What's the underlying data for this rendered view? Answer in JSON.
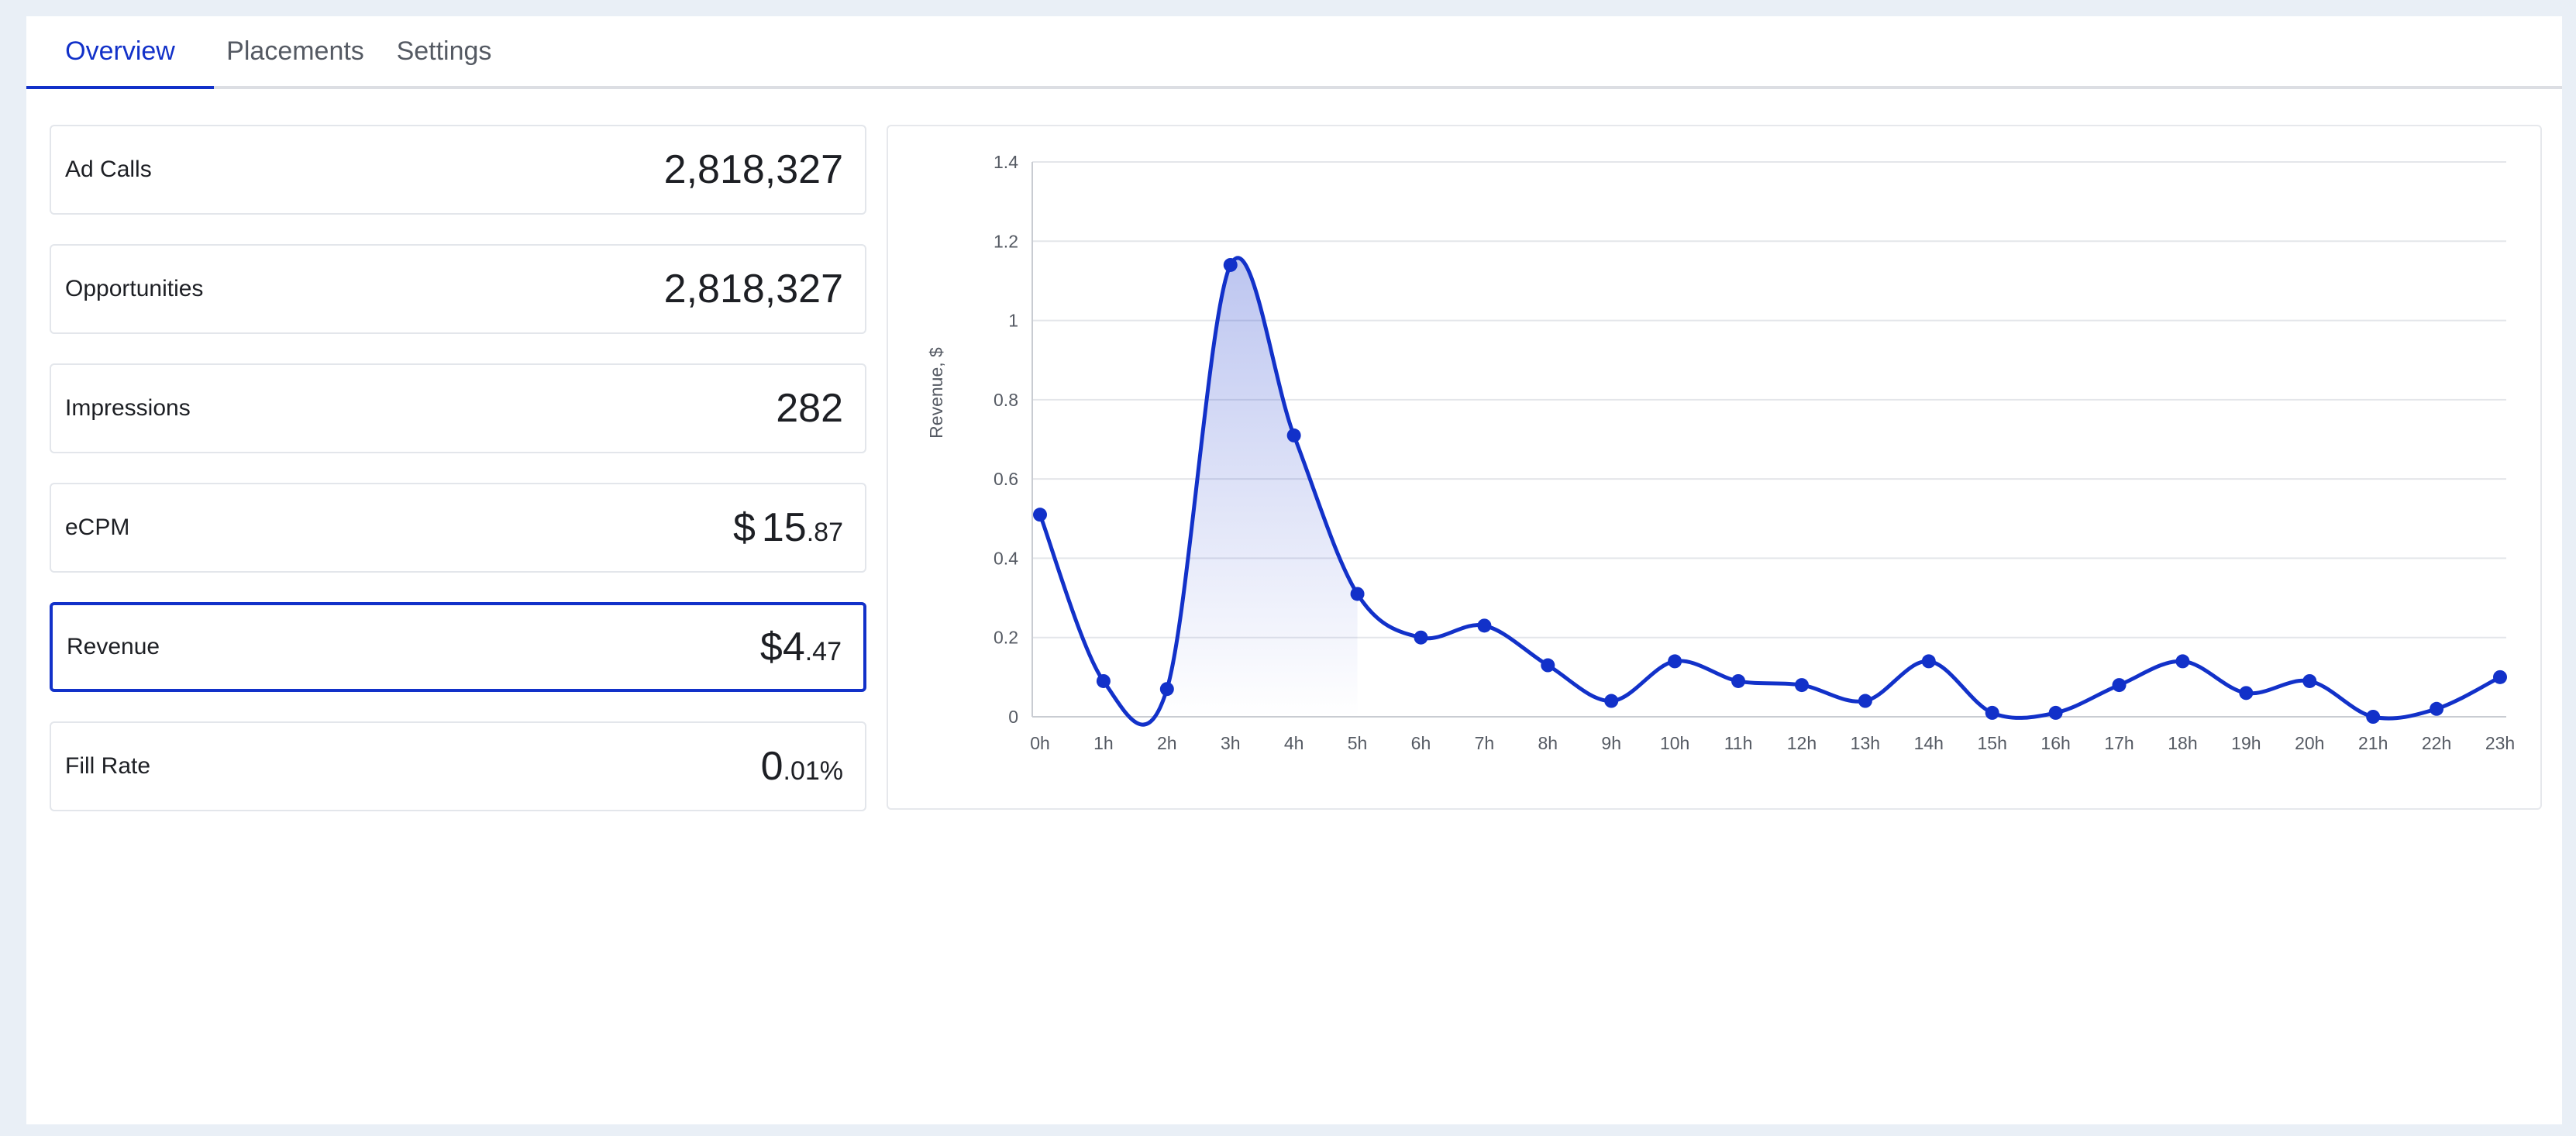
{
  "tabs": {
    "overview": "Overview",
    "placements": "Placements",
    "settings": "Settings"
  },
  "metrics": {
    "ad_calls": {
      "label": "Ad Calls",
      "value": "2,818,327"
    },
    "opportunities": {
      "label": "Opportunities",
      "value": "2,818,327"
    },
    "impressions": {
      "label": "Impressions",
      "value": "282"
    },
    "ecpm": {
      "label": "eCPM",
      "currency": "$",
      "whole": "15",
      "decimal": ".87"
    },
    "revenue": {
      "label": "Revenue",
      "currency": "$",
      "whole": "4",
      "decimal": ".47"
    },
    "fill_rate": {
      "label": "Fill Rate",
      "whole": "0",
      "decimal": ".01%"
    }
  },
  "colors": {
    "accent": "#1231c9",
    "grid": "#e4e6ea",
    "tick_text": "#555a63"
  },
  "chart_data": {
    "type": "line",
    "ylabel": "Revenue, $",
    "xlabel": "",
    "ylim": [
      0,
      1.4
    ],
    "y_ticks": [
      0,
      0.2,
      0.4,
      0.6,
      0.8,
      1,
      1.2,
      1.4
    ],
    "y_tick_labels": [
      "0",
      "0.2",
      "0.4",
      "0.6",
      "0.8",
      "1",
      "1.2",
      "1.4"
    ],
    "categories": [
      "0h",
      "1h",
      "2h",
      "3h",
      "4h",
      "5h",
      "6h",
      "7h",
      "8h",
      "9h",
      "10h",
      "11h",
      "12h",
      "13h",
      "14h",
      "15h",
      "16h",
      "17h",
      "18h",
      "19h",
      "20h",
      "21h",
      "22h",
      "23h"
    ],
    "series": [
      {
        "values": [
          0.51,
          0.09,
          0.07,
          1.14,
          0.71,
          0.31,
          0.2,
          0.23,
          0.13,
          0.04,
          0.14,
          0.09,
          0.08,
          0.04,
          0.14,
          0.01,
          0.01,
          0.08,
          0.14,
          0.06,
          0.09,
          0.0,
          0.02,
          0.1
        ]
      }
    ],
    "grid": true,
    "highlight_fill_index": 3
  }
}
